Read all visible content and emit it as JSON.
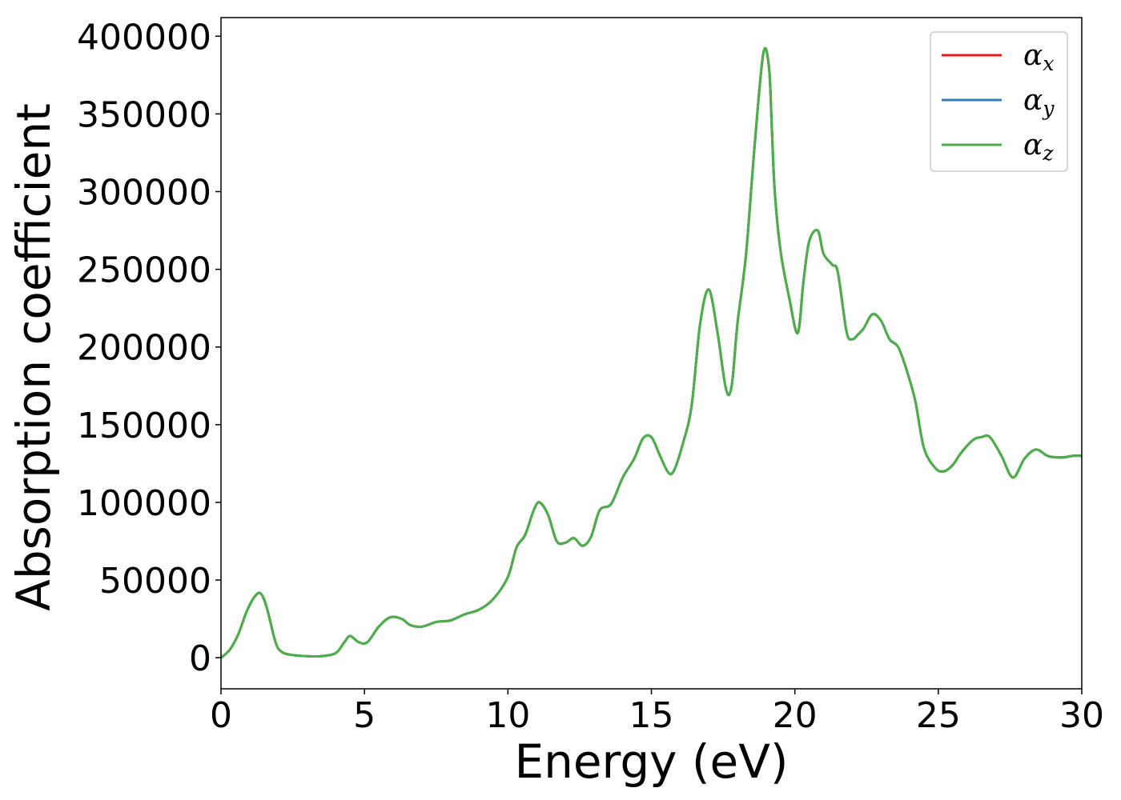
{
  "chart_data": {
    "type": "line",
    "title": "",
    "xlabel": "Energy (eV)",
    "ylabel": "Absorption coefficient",
    "xlim": [
      0,
      30
    ],
    "ylim": [
      -20000,
      412000
    ],
    "xticks": [
      0,
      5,
      10,
      15,
      20,
      25,
      30
    ],
    "yticks": [
      0,
      50000,
      100000,
      150000,
      200000,
      250000,
      300000,
      350000,
      400000
    ],
    "grid": false,
    "legend_position": "top-right",
    "x": [
      0,
      0.3,
      0.6,
      0.9,
      1.2,
      1.4,
      1.6,
      1.9,
      2.1,
      2.4,
      3.0,
      3.5,
      4.0,
      4.3,
      4.5,
      4.8,
      5.1,
      5.5,
      5.9,
      6.3,
      6.6,
      7.0,
      7.5,
      8.0,
      8.5,
      9.0,
      9.5,
      10.0,
      10.3,
      10.6,
      10.9,
      11.1,
      11.4,
      11.7,
      12.0,
      12.3,
      12.6,
      12.9,
      13.2,
      13.6,
      14.0,
      14.4,
      14.7,
      15.0,
      15.3,
      15.6,
      15.8,
      16.1,
      16.4,
      16.7,
      17.0,
      17.3,
      17.6,
      17.8,
      18.0,
      18.3,
      18.6,
      18.9,
      19.1,
      19.2,
      19.3,
      19.5,
      19.8,
      20.1,
      20.3,
      20.5,
      20.8,
      21.0,
      21.3,
      21.5,
      21.8,
      22.0,
      22.2,
      22.4,
      22.7,
      23.0,
      23.3,
      23.6,
      23.9,
      24.2,
      24.5,
      24.9,
      25.2,
      25.5,
      25.8,
      26.2,
      26.5,
      26.8,
      27.2,
      27.6,
      28.0,
      28.4,
      28.8,
      29.1,
      29.4,
      29.7,
      30.0
    ],
    "series": [
      {
        "name": "αx",
        "color": "#e41a1c",
        "values": [
          0,
          5000,
          15000,
          30000,
          40000,
          41000,
          32000,
          10000,
          4000,
          2000,
          1000,
          1000,
          3000,
          10000,
          14000,
          10000,
          10000,
          20000,
          26000,
          25000,
          21000,
          20000,
          23000,
          24000,
          28000,
          31000,
          38000,
          52000,
          71000,
          79000,
          95000,
          100000,
          92000,
          75000,
          74000,
          77000,
          72000,
          78000,
          95000,
          99000,
          116000,
          128000,
          141000,
          142000,
          130000,
          119000,
          121000,
          138000,
          162000,
          215000,
          237000,
          210000,
          173000,
          175000,
          215000,
          260000,
          330000,
          389000,
          380000,
          340000,
          300000,
          262000,
          232000,
          209000,
          242000,
          268000,
          275000,
          260000,
          253000,
          248000,
          210000,
          205000,
          208000,
          212000,
          221000,
          217000,
          205000,
          200000,
          185000,
          165000,
          135000,
          122000,
          120000,
          124000,
          132000,
          140000,
          142000,
          142000,
          130000,
          116000,
          128000,
          134000,
          130000,
          129000,
          129000,
          130000,
          130000
        ]
      },
      {
        "name": "αy",
        "color": "#377eb8",
        "values": [
          0,
          5000,
          15000,
          30000,
          40000,
          41000,
          32000,
          10000,
          4000,
          2000,
          1000,
          1000,
          3000,
          10000,
          14000,
          10000,
          10000,
          20000,
          26000,
          25000,
          21000,
          20000,
          23000,
          24000,
          28000,
          31000,
          38000,
          52000,
          71000,
          79000,
          95000,
          100000,
          92000,
          75000,
          74000,
          77000,
          72000,
          78000,
          95000,
          99000,
          116000,
          128000,
          141000,
          142000,
          130000,
          119000,
          121000,
          138000,
          162000,
          215000,
          237000,
          210000,
          173000,
          175000,
          215000,
          260000,
          330000,
          389000,
          380000,
          340000,
          300000,
          262000,
          232000,
          209000,
          242000,
          268000,
          275000,
          260000,
          253000,
          248000,
          210000,
          205000,
          208000,
          212000,
          221000,
          217000,
          205000,
          200000,
          185000,
          165000,
          135000,
          122000,
          120000,
          124000,
          132000,
          140000,
          142000,
          142000,
          130000,
          116000,
          128000,
          134000,
          130000,
          129000,
          129000,
          130000,
          130000
        ]
      },
      {
        "name": "αz",
        "color": "#4daf4a",
        "values": [
          0,
          5000,
          15000,
          30000,
          40000,
          41000,
          32000,
          10000,
          4000,
          2000,
          1000,
          1000,
          3000,
          10000,
          14000,
          10000,
          10000,
          20000,
          26000,
          25000,
          21000,
          20000,
          23000,
          24000,
          28000,
          31000,
          38000,
          52000,
          71000,
          79000,
          95000,
          100000,
          92000,
          75000,
          74000,
          77000,
          72000,
          78000,
          95000,
          99000,
          116000,
          128000,
          141000,
          142000,
          130000,
          119000,
          121000,
          138000,
          162000,
          215000,
          237000,
          210000,
          173000,
          175000,
          215000,
          260000,
          330000,
          389000,
          380000,
          340000,
          300000,
          262000,
          232000,
          209000,
          242000,
          268000,
          275000,
          260000,
          253000,
          248000,
          210000,
          205000,
          208000,
          212000,
          221000,
          217000,
          205000,
          200000,
          185000,
          165000,
          135000,
          122000,
          120000,
          124000,
          132000,
          140000,
          142000,
          142000,
          130000,
          116000,
          128000,
          134000,
          130000,
          129000,
          129000,
          130000,
          130000
        ]
      }
    ],
    "legend": [
      {
        "symbol": "α",
        "sub": "x",
        "color": "#e41a1c"
      },
      {
        "symbol": "α",
        "sub": "y",
        "color": "#377eb8"
      },
      {
        "symbol": "α",
        "sub": "z",
        "color": "#4daf4a"
      }
    ]
  }
}
